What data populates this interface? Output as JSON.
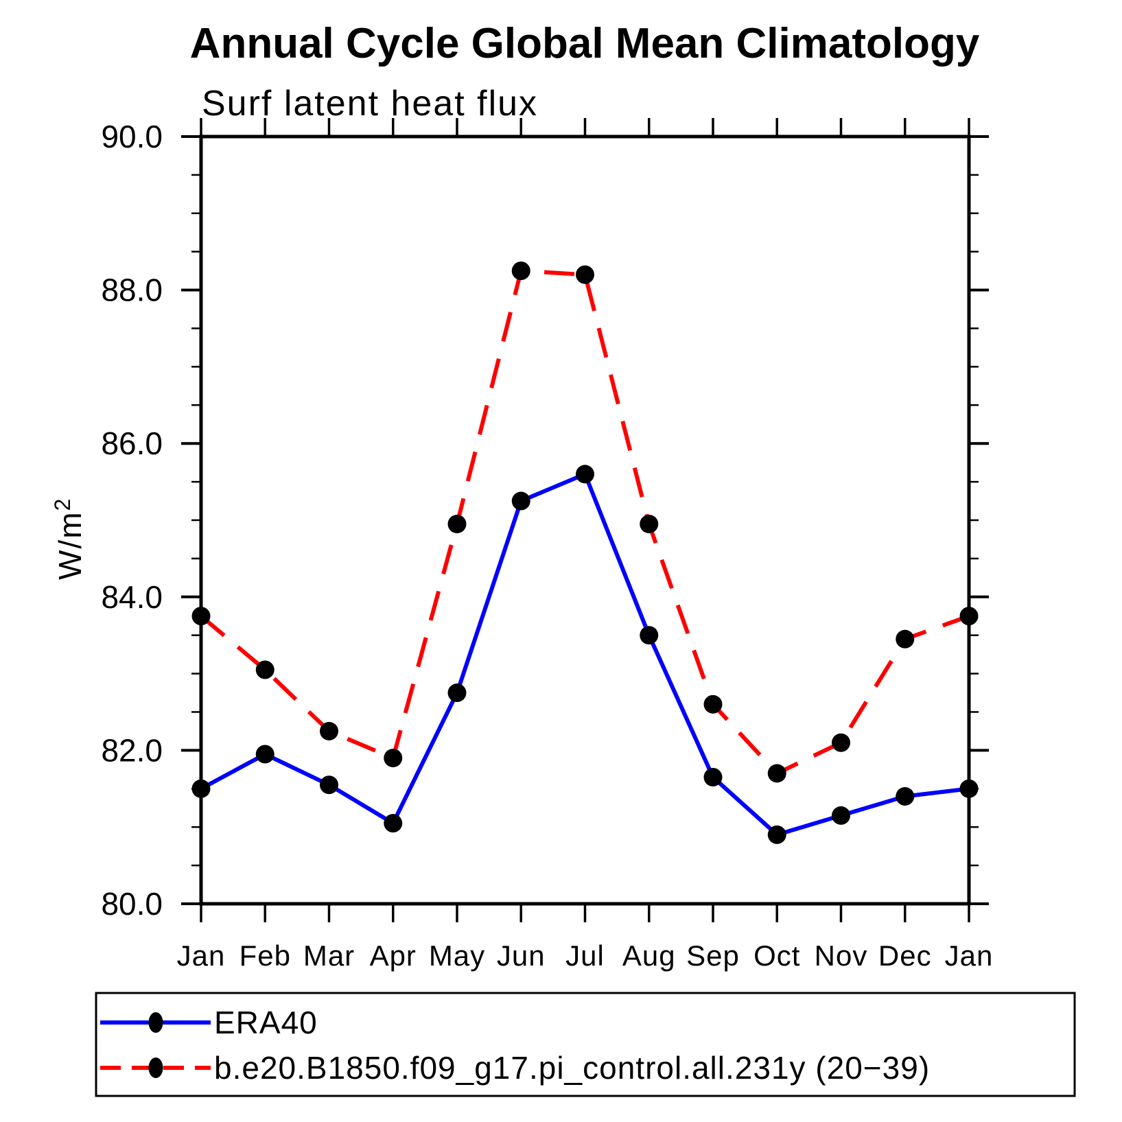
{
  "title": "Annual Cycle Global Mean Climatology",
  "subtitle": "Surf latent heat flux",
  "ylabel": {
    "base": "W/m",
    "sup": "2"
  },
  "chart_data": {
    "type": "line",
    "categories": [
      "Jan",
      "Feb",
      "Mar",
      "Apr",
      "May",
      "Jun",
      "Jul",
      "Aug",
      "Sep",
      "Oct",
      "Nov",
      "Dec",
      "Jan"
    ],
    "xlabel": "",
    "ylabel": "W/m2",
    "ylim": [
      80.0,
      90.0
    ],
    "ytick_major_step": 2.0,
    "ytick_minor_step": 0.5,
    "ytick_labels": [
      "80.0",
      "82.0",
      "84.0",
      "86.0",
      "88.0",
      "90.0"
    ],
    "grid": false,
    "legend_position": "bottom",
    "axis_color": "#000000",
    "marker_color": "#000000",
    "series": [
      {
        "id": "era40",
        "name": "ERA40",
        "color": "#0000ff",
        "style": "solid",
        "marker": "circle",
        "values": [
          81.5,
          81.95,
          81.55,
          81.05,
          82.75,
          85.25,
          85.6,
          83.5,
          81.65,
          80.9,
          81.15,
          81.4,
          81.5
        ]
      },
      {
        "id": "model",
        "name": "b.e20.B1850.f09_g17.pi_control.all.231y (20−39)",
        "color": "#ff0000",
        "style": "dashed",
        "marker": "circle",
        "values": [
          83.75,
          83.05,
          82.25,
          81.9,
          84.95,
          88.25,
          88.2,
          84.95,
          82.6,
          81.7,
          82.1,
          83.45,
          83.75
        ]
      }
    ]
  }
}
